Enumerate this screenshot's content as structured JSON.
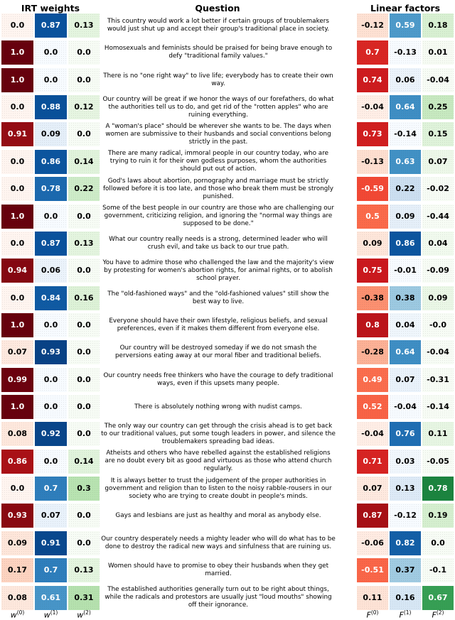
{
  "headers": {
    "irt_weights": "IRT weights",
    "question": "Question",
    "linear_factors": "Linear factors"
  },
  "footer": {
    "w_labels": [
      {
        "base": "w",
        "sup": "(0)"
      },
      {
        "base": "w",
        "sup": "(1)"
      },
      {
        "base": "w",
        "sup": "(2)"
      }
    ],
    "f_labels": [
      {
        "base": "F",
        "sup": "(0)"
      },
      {
        "base": "F",
        "sup": "(1)"
      },
      {
        "base": "F",
        "sup": "(2)"
      }
    ]
  },
  "colors": {
    "reds": [
      "#fff5f0",
      "#fee0d2",
      "#fcbba1",
      "#fc9272",
      "#fb6a4a",
      "#ef3b2c",
      "#cb181d",
      "#a50f15",
      "#67000d"
    ],
    "blues": [
      "#f7fbff",
      "#deebf7",
      "#c6dbef",
      "#9ecae1",
      "#6baed6",
      "#4292c6",
      "#2171b5",
      "#08519c",
      "#08306b"
    ],
    "greens": [
      "#f7fcf5",
      "#e5f5e0",
      "#c7e9c0",
      "#a1d99b",
      "#74c476",
      "#41ab5d",
      "#238b45",
      "#006d2c",
      "#00441b"
    ],
    "text_dark": "#000000",
    "text_light": "#ffffff"
  },
  "chart_data": {
    "type": "heatmap",
    "title": "",
    "column_groups": [
      "IRT weights",
      "Question",
      "Linear factors"
    ],
    "columns": [
      "w(0)",
      "w(1)",
      "w(2)",
      "question",
      "F(0)",
      "F(1)",
      "F(2)"
    ],
    "legend_position": "none",
    "grid": false,
    "rows": [
      {
        "w": [
          "0.0",
          "0.87",
          "0.13"
        ],
        "q": "This country would work a lot better if certain groups of troublemakers would just shut up and accept their group's traditional place in society.",
        "f": [
          "-0.12",
          "0.59",
          "0.18"
        ]
      },
      {
        "w": [
          "1.0",
          "0.0",
          "0.0"
        ],
        "q": "Homosexuals and feminists should be praised for being brave enough to defy \"traditional family values.\"",
        "f": [
          "0.7",
          "-0.13",
          "0.01"
        ]
      },
      {
        "w": [
          "1.0",
          "0.0",
          "0.0"
        ],
        "q": "There is no \"one right way\" to live life; everybody has to create their own way.",
        "f": [
          "0.74",
          "0.06",
          "-0.04"
        ]
      },
      {
        "w": [
          "0.0",
          "0.88",
          "0.12"
        ],
        "q": "Our country will be great if we honor the ways of our forefathers, do what the authorities tell us to do, and get rid of the \"rotten apples\" who are ruining everything.",
        "f": [
          "-0.04",
          "0.64",
          "0.25"
        ]
      },
      {
        "w": [
          "0.91",
          "0.09",
          "0.0"
        ],
        "q": "A \"woman's place\" should be wherever she wants to be. The days when women are submissive to their husbands and social conventions belong strictly in the past.",
        "f": [
          "0.73",
          "-0.14",
          "0.15"
        ]
      },
      {
        "w": [
          "0.0",
          "0.86",
          "0.14"
        ],
        "q": "There are many radical, immoral people in our country today, who are trying to ruin it for their own godless purposes, whom the authorities should put out of action.",
        "f": [
          "-0.13",
          "0.63",
          "0.07"
        ]
      },
      {
        "w": [
          "0.0",
          "0.78",
          "0.22"
        ],
        "q": "God's laws about abortion, pornography and marriage must be strictly followed before it is too late, and those who break them must be strongly punished.",
        "f": [
          "-0.59",
          "0.22",
          "-0.02"
        ]
      },
      {
        "w": [
          "1.0",
          "0.0",
          "0.0"
        ],
        "q": "Some of the best people in our country are those who are challenging our government, criticizing religion, and ignoring the \"normal way things are supposed to be done.\"",
        "f": [
          "0.5",
          "0.09",
          "-0.44"
        ]
      },
      {
        "w": [
          "0.0",
          "0.87",
          "0.13"
        ],
        "q": "What our country really needs is a strong, determined leader who will crush evil, and take us back to our true path.",
        "f": [
          "0.09",
          "0.86",
          "0.04"
        ]
      },
      {
        "w": [
          "0.94",
          "0.06",
          "0.0"
        ],
        "q": "You have to admire those who challenged the law and the majority's view by protesting for women's abortion rights, for animal rights, or to abolish school prayer.",
        "f": [
          "0.75",
          "-0.01",
          "-0.09"
        ]
      },
      {
        "w": [
          "0.0",
          "0.84",
          "0.16"
        ],
        "q": "The \"old-fashioned ways\" and the \"old-fashioned values\" still show the best way to live.",
        "f": [
          "-0.38",
          "0.38",
          "0.09"
        ]
      },
      {
        "w": [
          "1.0",
          "0.0",
          "0.0"
        ],
        "q": "Everyone should have their own lifestyle, religious beliefs, and sexual preferences, even if it makes them different from everyone else.",
        "f": [
          "0.8",
          "0.04",
          "-0.0"
        ]
      },
      {
        "w": [
          "0.07",
          "0.93",
          "0.0"
        ],
        "q": "Our country will be destroyed someday if we do not smash the perversions eating away at our moral fiber and traditional beliefs.",
        "f": [
          "-0.28",
          "0.64",
          "-0.04"
        ]
      },
      {
        "w": [
          "0.99",
          "0.0",
          "0.0"
        ],
        "q": "Our country needs free thinkers who have the courage to defy traditional ways, even if this upsets many people.",
        "f": [
          "0.49",
          "0.07",
          "-0.31"
        ]
      },
      {
        "w": [
          "1.0",
          "0.0",
          "0.0"
        ],
        "q": "There is absolutely nothing wrong with nudist camps.",
        "f": [
          "0.52",
          "-0.04",
          "-0.14"
        ]
      },
      {
        "w": [
          "0.08",
          "0.92",
          "0.0"
        ],
        "q": "The only way our country can get through the crisis ahead is to get back to our traditional values, put some tough leaders in power, and silence the troublemakers spreading bad ideas.",
        "f": [
          "-0.04",
          "0.76",
          "0.11"
        ]
      },
      {
        "w": [
          "0.86",
          "0.0",
          "0.14"
        ],
        "q": "Atheists and others who have rebelled against the established religions are no doubt every bit as good and virtuous as those who attend church regularly.",
        "f": [
          "0.71",
          "0.03",
          "-0.05"
        ]
      },
      {
        "w": [
          "0.0",
          "0.7",
          "0.3"
        ],
        "q": "It is always better to trust the judgement of the proper authorities in government and religion than to listen to the noisy rabble-rousers in our society who are trying to create doubt in people's minds.",
        "f": [
          "0.07",
          "0.13",
          "0.78"
        ]
      },
      {
        "w": [
          "0.93",
          "0.07",
          "0.0"
        ],
        "q": "Gays and lesbians are just as healthy and moral as anybody else.",
        "f": [
          "0.87",
          "-0.12",
          "0.19"
        ]
      },
      {
        "w": [
          "0.09",
          "0.91",
          "0.0"
        ],
        "q": "Our country desperately needs a mighty leader who will do what has to be done to destroy the radical new ways and sinfulness that are ruining us.",
        "f": [
          "-0.06",
          "0.82",
          "0.0"
        ]
      },
      {
        "w": [
          "0.17",
          "0.7",
          "0.13"
        ],
        "q": "Women should have to promise to obey their husbands when they get married.",
        "f": [
          "-0.51",
          "0.37",
          "-0.1"
        ]
      },
      {
        "w": [
          "0.08",
          "0.61",
          "0.31"
        ],
        "q": "The established authorities generally turn out to be right about things, while the radicals and protestors are usually just \"loud mouths\" showing off their ignorance.",
        "f": [
          "0.11",
          "0.16",
          "0.67"
        ]
      }
    ]
  }
}
